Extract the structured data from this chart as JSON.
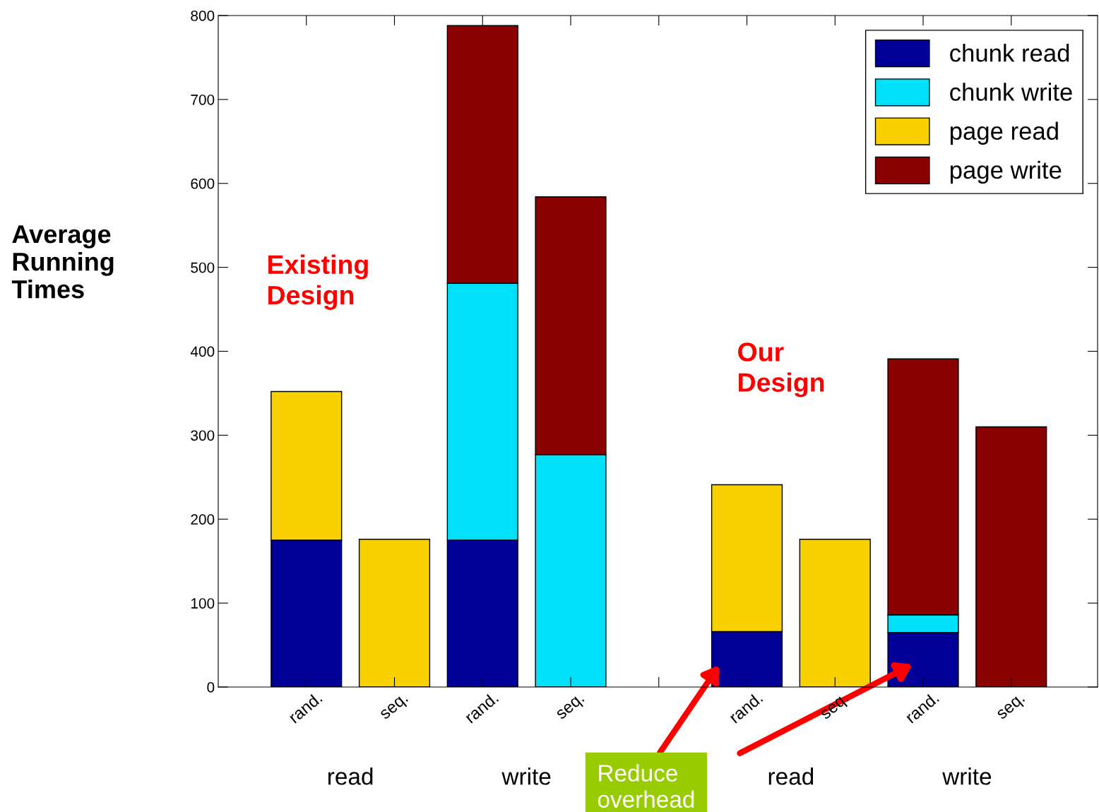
{
  "chart_data": {
    "type": "bar",
    "stacked": true,
    "categories": [
      "rand.",
      "seq.",
      "rand.",
      "seq.",
      null,
      "rand.",
      "seq.",
      "rand.",
      "seq."
    ],
    "ylabel": "Average\nRunning\nTimes",
    "series": [
      {
        "name": "chunk read",
        "color": "#000099",
        "values": [
          175,
          null,
          175,
          null,
          null,
          66,
          null,
          65,
          null
        ]
      },
      {
        "name": "chunk write",
        "color": "#00e0f8",
        "values": [
          null,
          null,
          306,
          277,
          null,
          null,
          null,
          21,
          null
        ]
      },
      {
        "name": "page read",
        "color": "#f9d000",
        "values": [
          177,
          176,
          null,
          null,
          null,
          175,
          176,
          null,
          null
        ]
      },
      {
        "name": "page write",
        "color": "#8b0000",
        "values": [
          null,
          null,
          307,
          307,
          null,
          null,
          null,
          305,
          310
        ]
      }
    ],
    "ylim": [
      0,
      800
    ],
    "yticks": [
      0,
      100,
      200,
      300,
      400,
      500,
      600,
      700,
      800
    ],
    "legend": "top right",
    "grid": false,
    "annotations": [
      "Existing\nDesign",
      "Our\nDesign",
      "read",
      "write",
      "read",
      "write",
      "Reduce\noverhead"
    ]
  }
}
